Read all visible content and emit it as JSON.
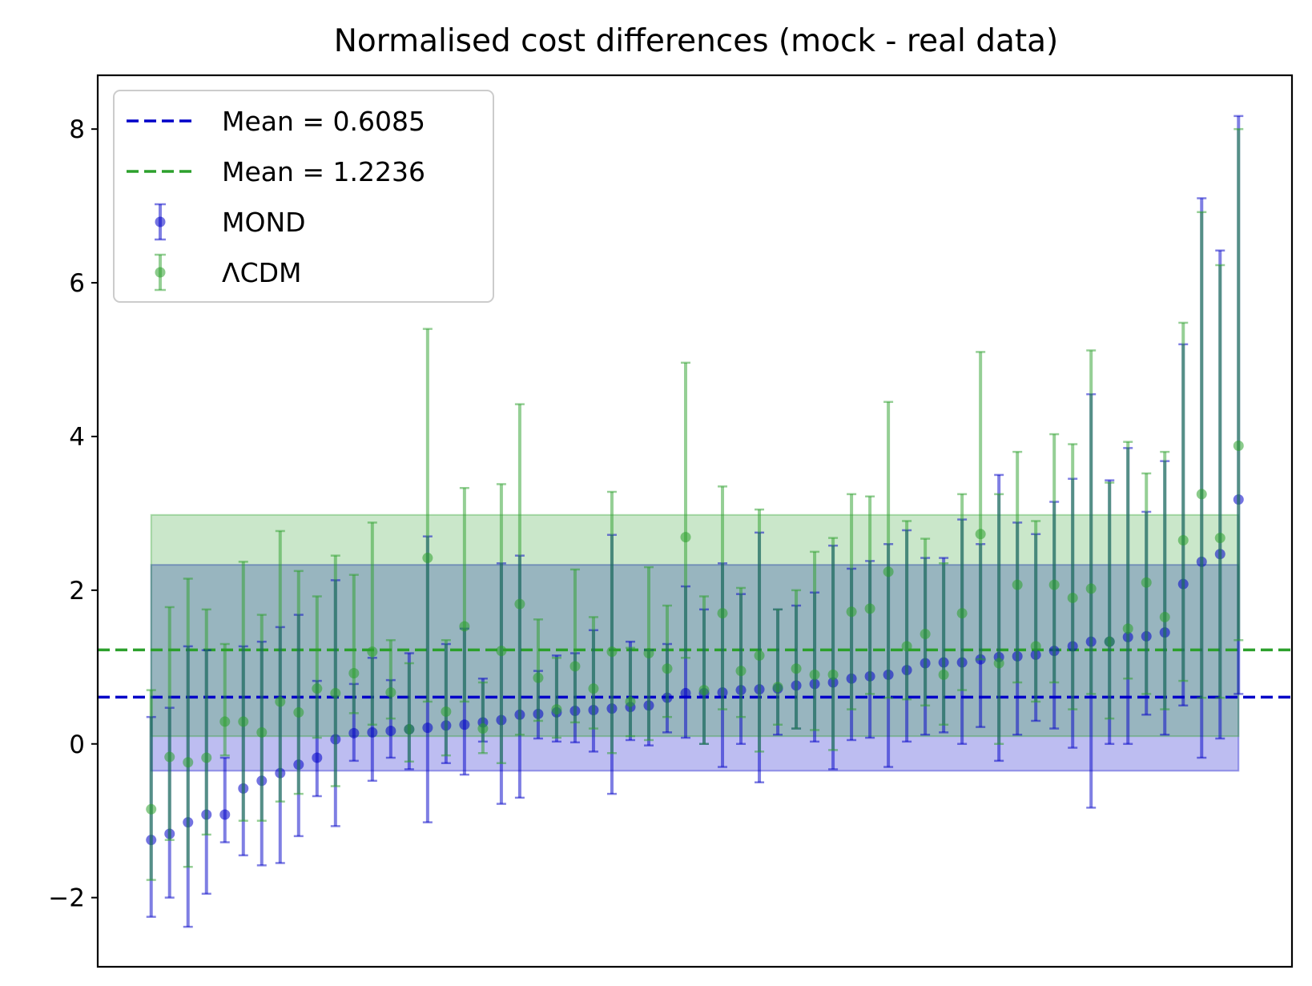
{
  "chart_data": {
    "type": "scatter",
    "title": "Normalised cost differences (mock - real data)",
    "xlabel": "",
    "ylabel": "",
    "ylim": [
      -2.9,
      8.7
    ],
    "xlim": [
      -2.9,
      61.9
    ],
    "yticks": [
      -2,
      0,
      2,
      4,
      6,
      8
    ],
    "ytick_labels": [
      "−2",
      "0",
      "2",
      "4",
      "6",
      "8"
    ],
    "show_xticks": false,
    "grid": false,
    "legend_position": "top-left",
    "legend": [
      {
        "label": "Mean = 0.6085",
        "kind": "line",
        "color": "#0000c8"
      },
      {
        "label": "Mean = 1.2236",
        "kind": "line",
        "color": "#2ca02c"
      },
      {
        "label": "MOND",
        "kind": "errorbar",
        "color": "#0000c8"
      },
      {
        "label": "ΛCDM",
        "kind": "errorbar",
        "color": "#2ca02c"
      }
    ],
    "mean_lines": [
      {
        "y": 0.6085,
        "color": "#0000c8"
      },
      {
        "y": 1.2236,
        "color": "#2ca02c"
      }
    ],
    "bands": [
      {
        "name": "MOND",
        "color": "#0000c8",
        "opacity": 0.26,
        "y_low": -0.35,
        "y_high": 2.33,
        "x_start": 0,
        "x_end": 59
      },
      {
        "name": "ΛCDM",
        "color": "#2ca02c",
        "opacity": 0.25,
        "y_low": 0.1,
        "y_high": 2.98,
        "x_start": 0,
        "x_end": 59
      }
    ],
    "series": [
      {
        "name": "MOND",
        "color": "#0000c8",
        "points": [
          {
            "x": 0,
            "y": -1.25,
            "lo": -2.25,
            "hi": 0.35
          },
          {
            "x": 1,
            "y": -1.17,
            "lo": -2.0,
            "hi": 0.47
          },
          {
            "x": 2,
            "y": -1.02,
            "lo": -2.38,
            "hi": 1.27
          },
          {
            "x": 3,
            "y": -0.92,
            "lo": -1.95,
            "hi": 1.22
          },
          {
            "x": 4,
            "y": -0.92,
            "lo": -1.28,
            "hi": -0.18
          },
          {
            "x": 5,
            "y": -0.58,
            "lo": -1.45,
            "hi": 1.27
          },
          {
            "x": 6,
            "y": -0.48,
            "lo": -1.58,
            "hi": 1.33
          },
          {
            "x": 7,
            "y": -0.38,
            "lo": -1.55,
            "hi": 1.52
          },
          {
            "x": 8,
            "y": -0.27,
            "lo": -1.2,
            "hi": 1.68
          },
          {
            "x": 9,
            "y": -0.18,
            "lo": -0.68,
            "hi": 0.82
          },
          {
            "x": 10,
            "y": 0.06,
            "lo": -1.07,
            "hi": 2.13
          },
          {
            "x": 11,
            "y": 0.14,
            "lo": -0.22,
            "hi": 0.78
          },
          {
            "x": 12,
            "y": 0.15,
            "lo": -0.48,
            "hi": 1.12
          },
          {
            "x": 13,
            "y": 0.17,
            "lo": -0.18,
            "hi": 0.83
          },
          {
            "x": 14,
            "y": 0.19,
            "lo": -0.33,
            "hi": 1.18
          },
          {
            "x": 15,
            "y": 0.21,
            "lo": -1.02,
            "hi": 2.7
          },
          {
            "x": 16,
            "y": 0.24,
            "lo": -0.25,
            "hi": 1.3
          },
          {
            "x": 17,
            "y": 0.25,
            "lo": -0.4,
            "hi": 1.5
          },
          {
            "x": 18,
            "y": 0.28,
            "lo": 0.03,
            "hi": 0.85
          },
          {
            "x": 19,
            "y": 0.31,
            "lo": -0.78,
            "hi": 2.35
          },
          {
            "x": 20,
            "y": 0.38,
            "lo": -0.7,
            "hi": 2.45
          },
          {
            "x": 21,
            "y": 0.39,
            "lo": 0.07,
            "hi": 0.95
          },
          {
            "x": 22,
            "y": 0.41,
            "lo": 0.03,
            "hi": 1.15
          },
          {
            "x": 23,
            "y": 0.43,
            "lo": 0.02,
            "hi": 1.18
          },
          {
            "x": 24,
            "y": 0.44,
            "lo": -0.1,
            "hi": 1.48
          },
          {
            "x": 25,
            "y": 0.46,
            "lo": -0.65,
            "hi": 2.72
          },
          {
            "x": 26,
            "y": 0.48,
            "lo": 0.05,
            "hi": 1.33
          },
          {
            "x": 27,
            "y": 0.5,
            "lo": -0.02,
            "hi": 1.22
          },
          {
            "x": 28,
            "y": 0.6,
            "lo": 0.15,
            "hi": 1.3
          },
          {
            "x": 29,
            "y": 0.66,
            "lo": 0.08,
            "hi": 2.05
          },
          {
            "x": 30,
            "y": 0.66,
            "lo": 0.0,
            "hi": 1.75
          },
          {
            "x": 31,
            "y": 0.67,
            "lo": -0.3,
            "hi": 2.35
          },
          {
            "x": 32,
            "y": 0.7,
            "lo": 0.0,
            "hi": 1.95
          },
          {
            "x": 33,
            "y": 0.71,
            "lo": -0.5,
            "hi": 2.75
          },
          {
            "x": 34,
            "y": 0.72,
            "lo": 0.12,
            "hi": 1.75
          },
          {
            "x": 35,
            "y": 0.76,
            "lo": 0.2,
            "hi": 1.8
          },
          {
            "x": 36,
            "y": 0.78,
            "lo": 0.03,
            "hi": 1.97
          },
          {
            "x": 37,
            "y": 0.8,
            "lo": -0.33,
            "hi": 2.58
          },
          {
            "x": 38,
            "y": 0.85,
            "lo": 0.05,
            "hi": 2.28
          },
          {
            "x": 39,
            "y": 0.88,
            "lo": 0.08,
            "hi": 2.38
          },
          {
            "x": 40,
            "y": 0.9,
            "lo": -0.3,
            "hi": 2.6
          },
          {
            "x": 41,
            "y": 0.96,
            "lo": 0.03,
            "hi": 2.78
          },
          {
            "x": 42,
            "y": 1.05,
            "lo": 0.12,
            "hi": 2.42
          },
          {
            "x": 43,
            "y": 1.06,
            "lo": 0.15,
            "hi": 2.42
          },
          {
            "x": 44,
            "y": 1.06,
            "lo": 0.0,
            "hi": 2.92
          },
          {
            "x": 45,
            "y": 1.1,
            "lo": 0.22,
            "hi": 2.6
          },
          {
            "x": 46,
            "y": 1.13,
            "lo": -0.22,
            "hi": 3.5
          },
          {
            "x": 47,
            "y": 1.14,
            "lo": 0.12,
            "hi": 2.88
          },
          {
            "x": 48,
            "y": 1.16,
            "lo": 0.3,
            "hi": 2.73
          },
          {
            "x": 49,
            "y": 1.21,
            "lo": 0.2,
            "hi": 3.15
          },
          {
            "x": 50,
            "y": 1.27,
            "lo": -0.05,
            "hi": 3.45
          },
          {
            "x": 51,
            "y": 1.33,
            "lo": -0.83,
            "hi": 4.55
          },
          {
            "x": 52,
            "y": 1.33,
            "lo": 0.0,
            "hi": 3.43
          },
          {
            "x": 53,
            "y": 1.39,
            "lo": 0.0,
            "hi": 3.85
          },
          {
            "x": 54,
            "y": 1.4,
            "lo": 0.38,
            "hi": 3.02
          },
          {
            "x": 55,
            "y": 1.45,
            "lo": 0.12,
            "hi": 3.68
          },
          {
            "x": 56,
            "y": 2.08,
            "lo": 0.5,
            "hi": 5.2
          },
          {
            "x": 57,
            "y": 2.37,
            "lo": -0.18,
            "hi": 7.1
          },
          {
            "x": 58,
            "y": 2.47,
            "lo": 0.07,
            "hi": 6.42
          },
          {
            "x": 59,
            "y": 3.18,
            "lo": 0.65,
            "hi": 8.17
          }
        ]
      },
      {
        "name": "ΛCDM",
        "color": "#2ca02c",
        "points": [
          {
            "x": 0,
            "y": -0.85,
            "lo": -1.77,
            "hi": 0.7
          },
          {
            "x": 1,
            "y": -0.17,
            "lo": -1.25,
            "hi": 1.78
          },
          {
            "x": 2,
            "y": -0.24,
            "lo": -1.6,
            "hi": 2.15
          },
          {
            "x": 3,
            "y": -0.18,
            "lo": -1.18,
            "hi": 1.75
          },
          {
            "x": 4,
            "y": 0.29,
            "lo": -0.15,
            "hi": 1.3
          },
          {
            "x": 5,
            "y": 0.29,
            "lo": -1.0,
            "hi": 2.37
          },
          {
            "x": 6,
            "y": 0.15,
            "lo": -1.0,
            "hi": 1.68
          },
          {
            "x": 7,
            "y": 0.55,
            "lo": -0.75,
            "hi": 2.77
          },
          {
            "x": 8,
            "y": 0.41,
            "lo": -0.65,
            "hi": 2.25
          },
          {
            "x": 9,
            "y": 0.72,
            "lo": 0.08,
            "hi": 1.92
          },
          {
            "x": 10,
            "y": 0.66,
            "lo": -0.55,
            "hi": 2.45
          },
          {
            "x": 11,
            "y": 0.92,
            "lo": 0.4,
            "hi": 2.2
          },
          {
            "x": 12,
            "y": 1.2,
            "lo": 0.25,
            "hi": 2.88
          },
          {
            "x": 13,
            "y": 0.67,
            "lo": 0.33,
            "hi": 1.35
          },
          {
            "x": 14,
            "y": 0.19,
            "lo": -0.23,
            "hi": 1.05
          },
          {
            "x": 15,
            "y": 2.42,
            "lo": 0.55,
            "hi": 5.4
          },
          {
            "x": 16,
            "y": 0.42,
            "lo": -0.15,
            "hi": 1.35
          },
          {
            "x": 17,
            "y": 1.53,
            "lo": 0.55,
            "hi": 3.33
          },
          {
            "x": 18,
            "y": 0.2,
            "lo": -0.12,
            "hi": 0.8
          },
          {
            "x": 19,
            "y": 1.21,
            "lo": -0.25,
            "hi": 3.38
          },
          {
            "x": 20,
            "y": 1.82,
            "lo": 0.12,
            "hi": 4.42
          },
          {
            "x": 21,
            "y": 0.86,
            "lo": 0.3,
            "hi": 1.62
          },
          {
            "x": 22,
            "y": 0.45,
            "lo": 0.08,
            "hi": 1.12
          },
          {
            "x": 23,
            "y": 1.01,
            "lo": 0.28,
            "hi": 2.27
          },
          {
            "x": 24,
            "y": 0.72,
            "lo": 0.2,
            "hi": 1.65
          },
          {
            "x": 25,
            "y": 1.2,
            "lo": -0.12,
            "hi": 3.28
          },
          {
            "x": 26,
            "y": 0.55,
            "lo": 0.1,
            "hi": 1.25
          },
          {
            "x": 27,
            "y": 1.18,
            "lo": 0.05,
            "hi": 2.3
          },
          {
            "x": 28,
            "y": 0.98,
            "lo": 0.35,
            "hi": 1.8
          },
          {
            "x": 29,
            "y": 2.69,
            "lo": 1.12,
            "hi": 4.96
          },
          {
            "x": 30,
            "y": 0.7,
            "lo": 0.0,
            "hi": 1.92
          },
          {
            "x": 31,
            "y": 1.7,
            "lo": 0.45,
            "hi": 3.35
          },
          {
            "x": 32,
            "y": 0.95,
            "lo": 0.35,
            "hi": 2.03
          },
          {
            "x": 33,
            "y": 1.15,
            "lo": -0.1,
            "hi": 3.05
          },
          {
            "x": 34,
            "y": 0.74,
            "lo": 0.25,
            "hi": 1.75
          },
          {
            "x": 35,
            "y": 0.98,
            "lo": 0.2,
            "hi": 2.0
          },
          {
            "x": 36,
            "y": 0.9,
            "lo": 0.18,
            "hi": 2.5
          },
          {
            "x": 37,
            "y": 0.9,
            "lo": -0.08,
            "hi": 2.68
          },
          {
            "x": 38,
            "y": 1.72,
            "lo": 0.45,
            "hi": 3.25
          },
          {
            "x": 39,
            "y": 1.76,
            "lo": 0.65,
            "hi": 3.22
          },
          {
            "x": 40,
            "y": 2.24,
            "lo": 0.6,
            "hi": 4.45
          },
          {
            "x": 41,
            "y": 1.27,
            "lo": 0.58,
            "hi": 2.9
          },
          {
            "x": 42,
            "y": 1.43,
            "lo": 0.5,
            "hi": 2.67
          },
          {
            "x": 43,
            "y": 0.9,
            "lo": 0.25,
            "hi": 2.35
          },
          {
            "x": 44,
            "y": 1.7,
            "lo": 0.7,
            "hi": 3.25
          },
          {
            "x": 45,
            "y": 2.73,
            "lo": 1.1,
            "hi": 5.1
          },
          {
            "x": 46,
            "y": 1.05,
            "lo": 0.0,
            "hi": 3.25
          },
          {
            "x": 47,
            "y": 2.07,
            "lo": 0.8,
            "hi": 3.8
          },
          {
            "x": 48,
            "y": 1.27,
            "lo": 0.55,
            "hi": 2.9
          },
          {
            "x": 49,
            "y": 2.07,
            "lo": 0.8,
            "hi": 4.03
          },
          {
            "x": 50,
            "y": 1.9,
            "lo": 0.45,
            "hi": 3.9
          },
          {
            "x": 51,
            "y": 2.02,
            "lo": 0.65,
            "hi": 5.12
          },
          {
            "x": 52,
            "y": 1.33,
            "lo": 0.33,
            "hi": 3.4
          },
          {
            "x": 53,
            "y": 1.5,
            "lo": 0.85,
            "hi": 3.93
          },
          {
            "x": 54,
            "y": 2.1,
            "lo": 0.65,
            "hi": 3.52
          },
          {
            "x": 55,
            "y": 1.65,
            "lo": 0.45,
            "hi": 3.8
          },
          {
            "x": 56,
            "y": 2.65,
            "lo": 0.82,
            "hi": 5.48
          },
          {
            "x": 57,
            "y": 3.25,
            "lo": 0.6,
            "hi": 6.92
          },
          {
            "x": 58,
            "y": 2.68,
            "lo": 0.6,
            "hi": 6.23
          },
          {
            "x": 59,
            "y": 3.88,
            "lo": 1.35,
            "hi": 8.0
          }
        ]
      }
    ]
  }
}
